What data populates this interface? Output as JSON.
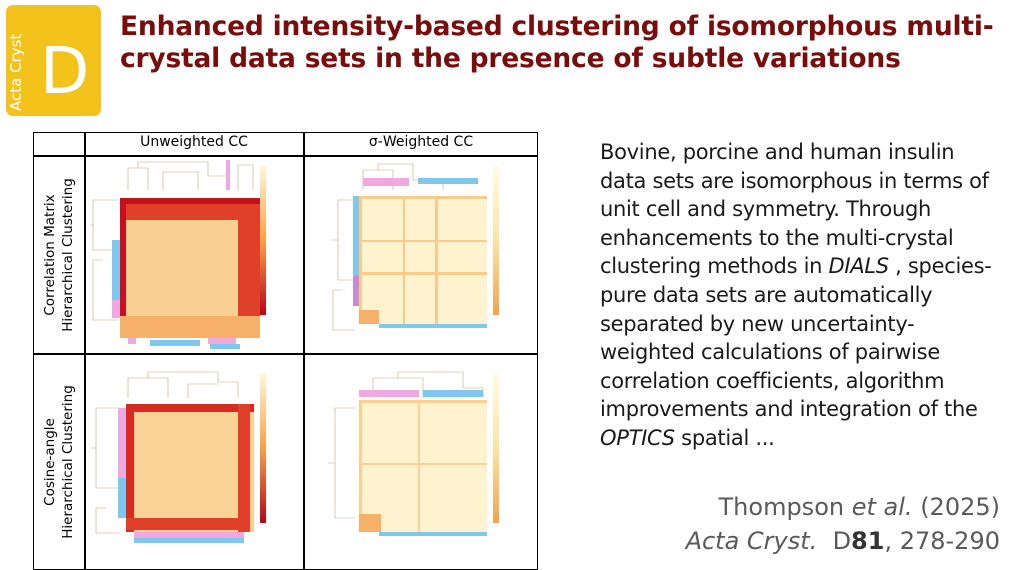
{
  "badge": {
    "journal": "Acta Cryst",
    "letter": "D"
  },
  "title": "Enhanced intensity-based clustering of isomorphous multi-crystal data sets in the presence of subtle variations",
  "figure": {
    "columns": [
      "Unweighted CC",
      "σ-Weighted CC"
    ],
    "rows": [
      {
        "line1": "Correlation Matrix",
        "line2": "Hierarchical Clustering"
      },
      {
        "line1": "Cosine-angle",
        "line2": "Hierarchical Clustering"
      }
    ]
  },
  "abstract": {
    "part1": "Bovine, porcine and human insulin data sets are isomorphous in terms of unit cell and symmetry. Through enhancements to the multi-crystal clustering methods in ",
    "term1": "DIALS",
    "part2": " , species-pure data sets are automatically separated by new uncertainty-weighted calculations of pairwise correlation coefficients, algorithm improvements and integration of the ",
    "term2": "OPTICS",
    "part3": "  spatial ..."
  },
  "citation": {
    "authors": "Thompson",
    "etal": "et al.",
    "year": "(2025)",
    "journal": "Acta Cryst.",
    "section": "D",
    "volume": "81",
    "pages": ", 278-290"
  },
  "colors": {
    "title": "#7a0c0c",
    "badge": "#f3c31c",
    "heat_high": "#c8101c",
    "heat_low": "#fff7d6",
    "cluster_blue": "#7ec8f0",
    "cluster_pink": "#f0a8e0"
  }
}
